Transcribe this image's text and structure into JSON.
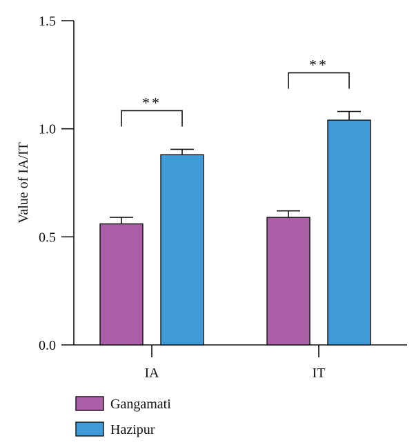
{
  "chart_data": {
    "type": "bar",
    "title": "",
    "xlabel": "",
    "ylabel": "Value of IA/IT",
    "ylim": [
      0,
      1.5
    ],
    "yticks": [
      "0.0",
      "0.5",
      "1.0",
      "1.5"
    ],
    "categories": [
      "IA",
      "IT"
    ],
    "series": [
      {
        "name": "Gangamati",
        "values": [
          0.56,
          0.59
        ],
        "errors": [
          0.03,
          0.03
        ],
        "color": "#aa5ea6"
      },
      {
        "name": "Hazipur",
        "values": [
          0.88,
          1.04
        ],
        "errors": [
          0.025,
          0.04
        ],
        "color": "#419ad8"
      }
    ],
    "annotations": [
      {
        "category": "IA",
        "label": "**"
      },
      {
        "category": "IT",
        "label": "**"
      }
    ],
    "legend_position": "bottom-left",
    "grid": false
  }
}
